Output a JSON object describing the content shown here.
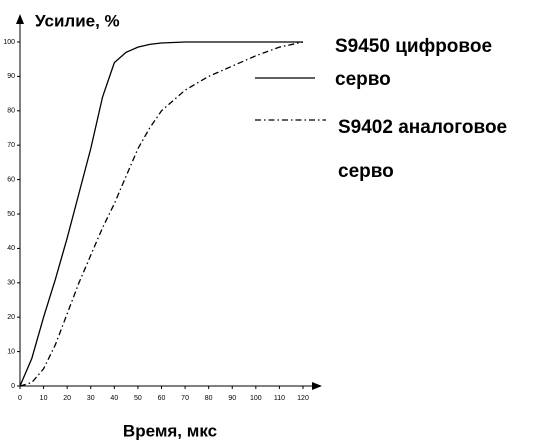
{
  "chart_data": {
    "type": "line",
    "title": "Усилие, %",
    "x_label": "Время, мкс",
    "x": [
      0,
      5,
      10,
      15,
      20,
      25,
      30,
      35,
      40,
      45,
      50,
      55,
      60,
      70,
      80,
      90,
      100,
      110,
      120
    ],
    "series": [
      {
        "name": "S9450 цифровое серво",
        "color": "#000000",
        "dash": "solid",
        "values": [
          0,
          8,
          20,
          31,
          43,
          56,
          69,
          84,
          94,
          97,
          98.5,
          99.3,
          99.7,
          100,
          100,
          100,
          100,
          100,
          100
        ]
      },
      {
        "name": "S9402 аналоговое серво",
        "color": "#000000",
        "dash": "dashdot",
        "values": [
          0,
          1,
          5,
          12,
          21,
          30,
          38,
          46,
          53,
          61,
          69,
          75,
          80,
          86,
          90,
          93,
          96,
          98.5,
          100
        ]
      }
    ],
    "xlim": [
      0,
      120
    ],
    "xticks": [
      0,
      10,
      20,
      30,
      40,
      50,
      60,
      70,
      80,
      90,
      100,
      110,
      120
    ],
    "ylim": [
      0,
      100
    ],
    "yticks": [
      0,
      10,
      20,
      30,
      40,
      50,
      60,
      70,
      80,
      90,
      100
    ]
  }
}
